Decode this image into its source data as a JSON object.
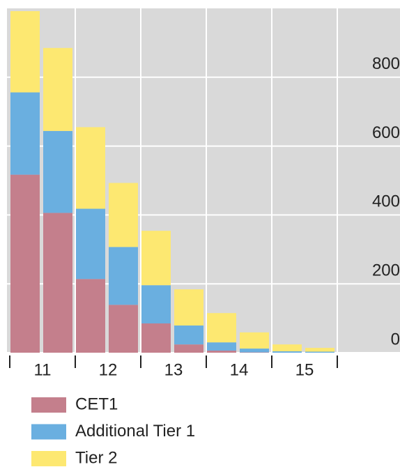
{
  "chart_data": {
    "type": "stacked_bar",
    "categories": [
      "11",
      null,
      "12",
      null,
      "13",
      null,
      "14",
      null,
      "15",
      null
    ],
    "series": [
      {
        "name": "CET1",
        "color": "#c47f8c",
        "values": [
          517,
          406,
          214,
          139,
          85,
          24,
          6,
          1,
          0,
          0
        ]
      },
      {
        "name": "Additional Tier 1",
        "color": "#6aafe0",
        "values": [
          239,
          238,
          204,
          168,
          111,
          55,
          24,
          11,
          4,
          3
        ]
      },
      {
        "name": "Tier 2",
        "color": "#fde871",
        "values": [
          236,
          241,
          237,
          186,
          158,
          105,
          85,
          47,
          20,
          11
        ]
      }
    ],
    "ylim": [
      0,
      1000
    ],
    "yticks": [
      0,
      200,
      400,
      600,
      800
    ],
    "grid": true
  }
}
